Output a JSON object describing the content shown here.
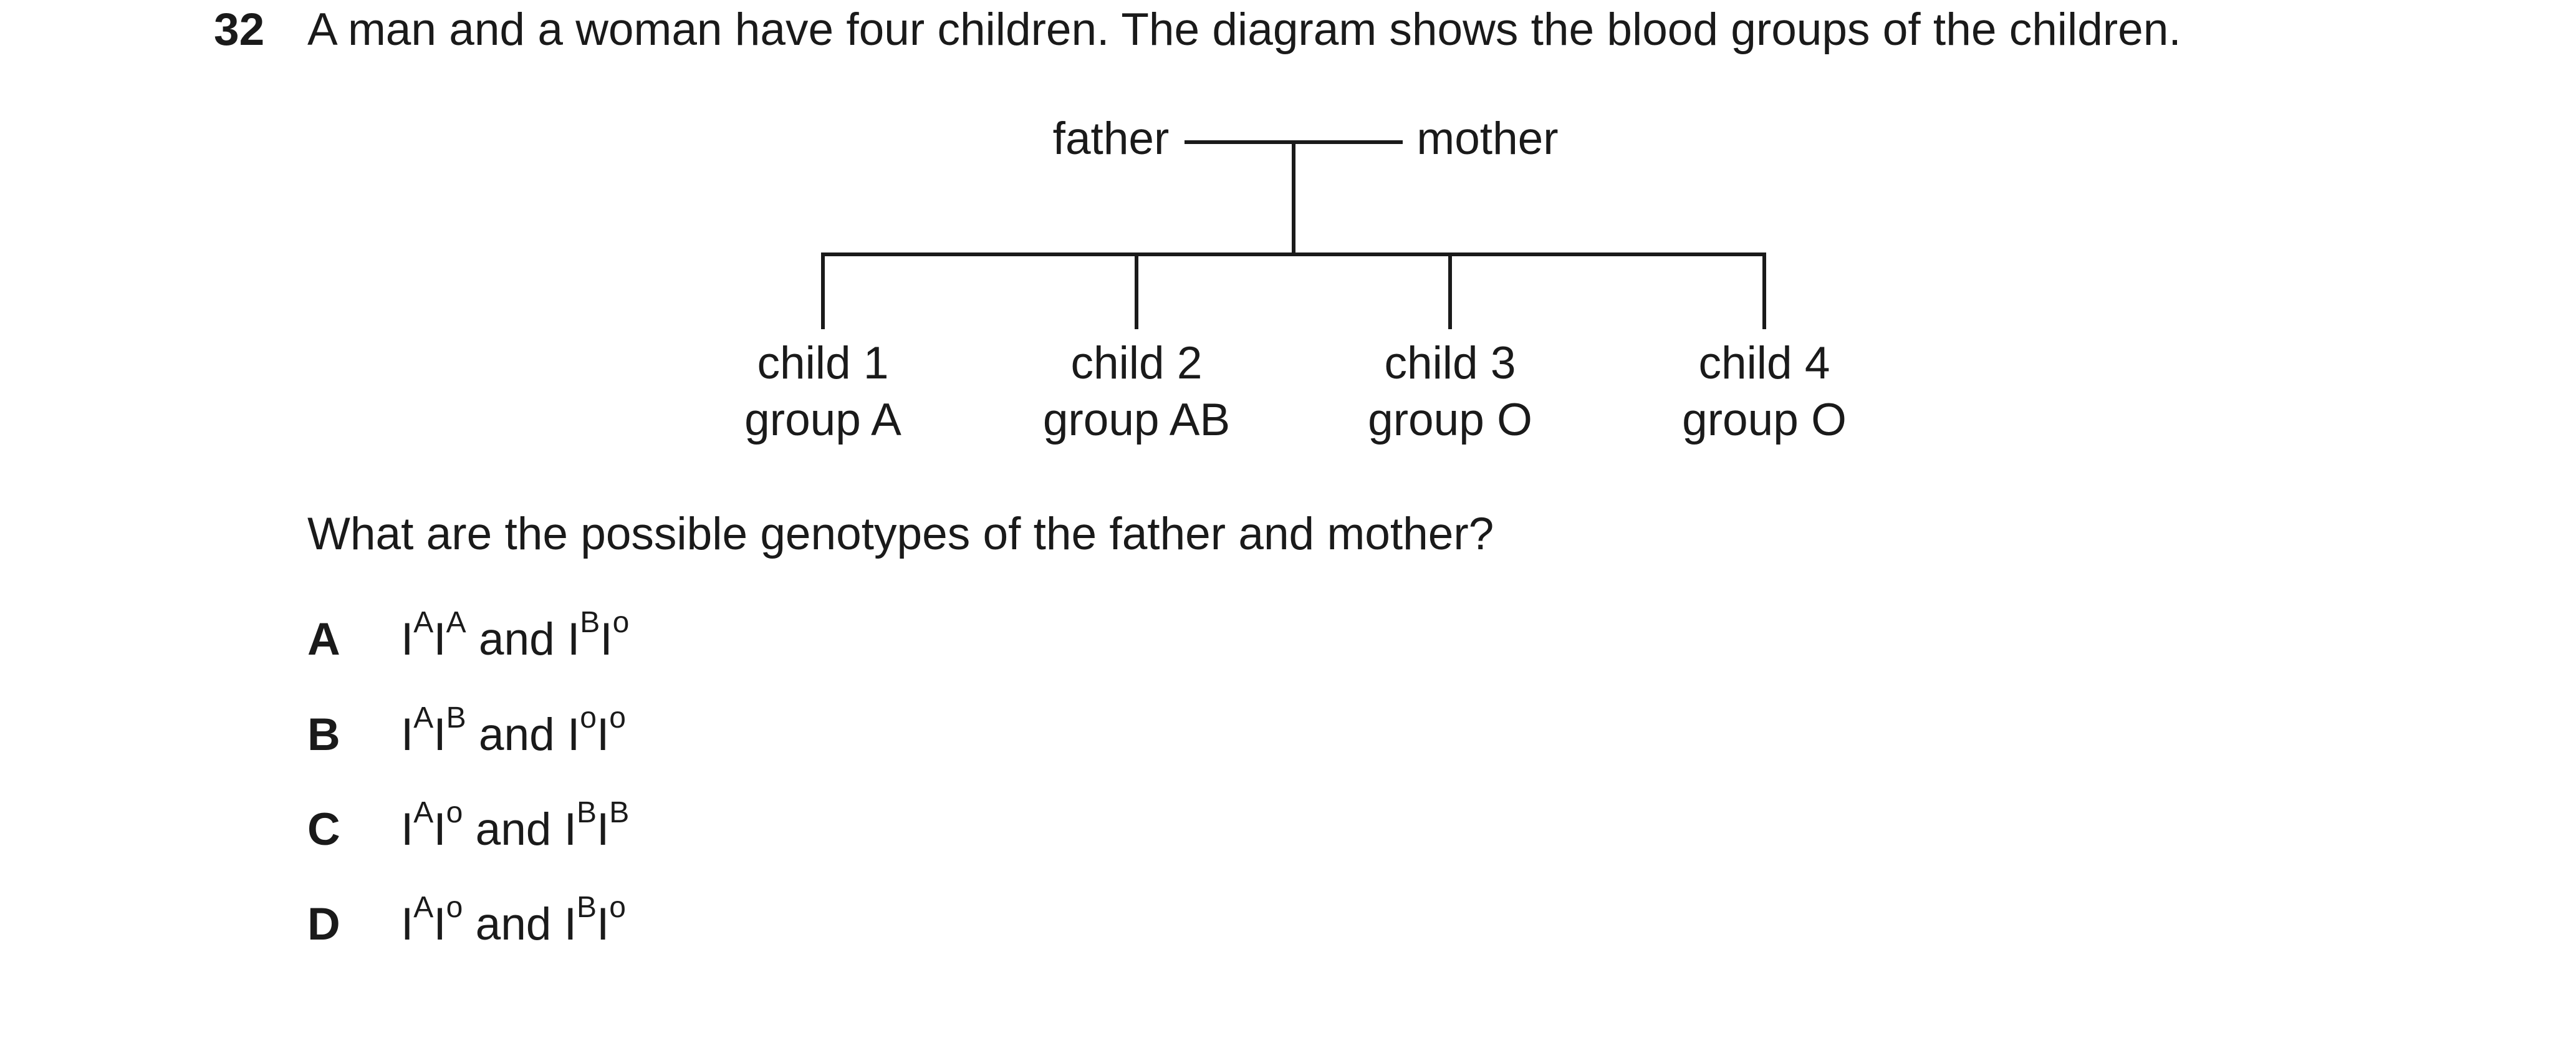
{
  "question": {
    "number": "32",
    "stem": "A man and a woman have four children. The diagram shows the blood groups of the children.",
    "prompt": "What are the possible genotypes of the father and mother?"
  },
  "diagram": {
    "father_label": "father",
    "mother_label": "mother",
    "children": [
      {
        "name": "child 1",
        "group": "group A"
      },
      {
        "name": "child 2",
        "group": "group AB"
      },
      {
        "name": "child 3",
        "group": "group O"
      },
      {
        "name": "child 4",
        "group": "group O"
      }
    ]
  },
  "options": [
    {
      "letter": "A",
      "father": {
        "base1": "I",
        "sup1": "A",
        "base2": "I",
        "sup2": "A"
      },
      "joiner": " and ",
      "mother": {
        "base1": "I",
        "sup1": "B",
        "base2": "I",
        "sup2": "o"
      }
    },
    {
      "letter": "B",
      "father": {
        "base1": "I",
        "sup1": "A",
        "base2": "I",
        "sup2": "B"
      },
      "joiner": " and ",
      "mother": {
        "base1": "I",
        "sup1": "o",
        "base2": "I",
        "sup2": "o"
      }
    },
    {
      "letter": "C",
      "father": {
        "base1": "I",
        "sup1": "A",
        "base2": "I",
        "sup2": "o"
      },
      "joiner": " and ",
      "mother": {
        "base1": "I",
        "sup1": "B",
        "base2": "I",
        "sup2": "B"
      }
    },
    {
      "letter": "D",
      "father": {
        "base1": "I",
        "sup1": "A",
        "base2": "I",
        "sup2": "o"
      },
      "joiner": " and ",
      "mother": {
        "base1": "I",
        "sup1": "B",
        "base2": "I",
        "sup2": "o"
      }
    }
  ]
}
